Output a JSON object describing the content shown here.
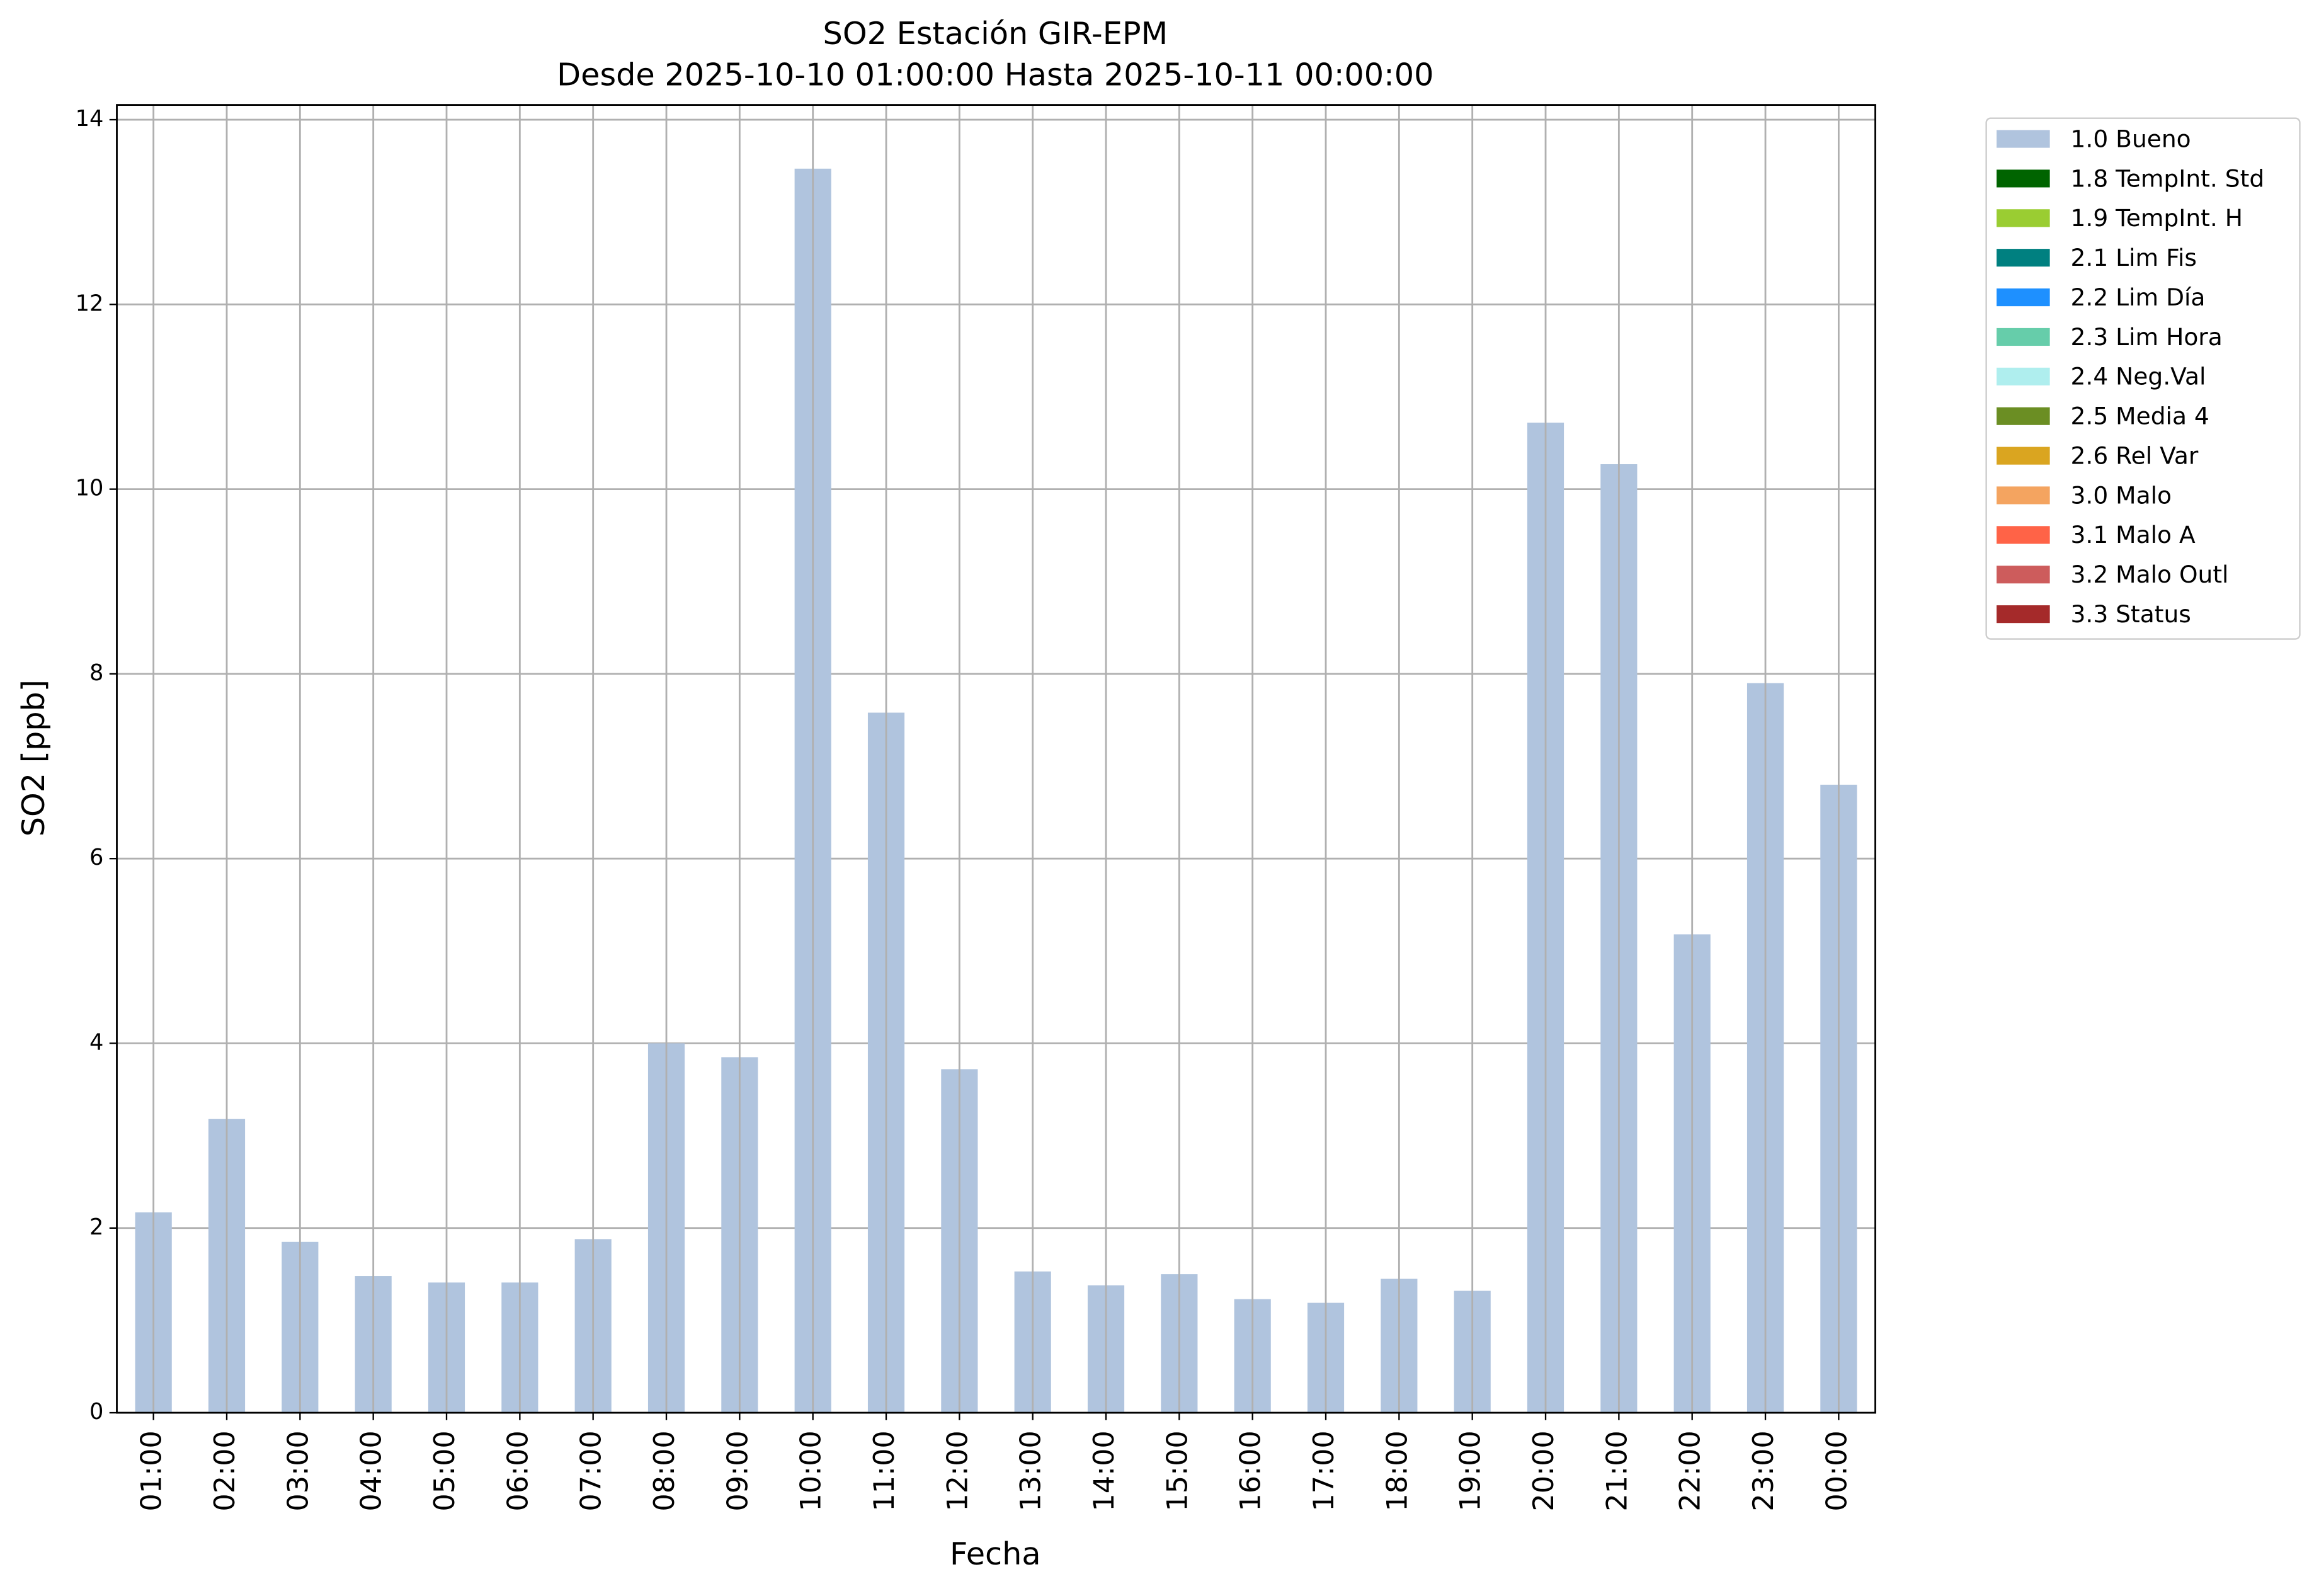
{
  "chart_data": {
    "type": "bar",
    "title": "SO2 Estación GIR-EPM",
    "subtitle": "Desde 2025-10-10 01:00:00 Hasta 2025-10-11 00:00:00",
    "x_label": "Fecha",
    "y_label": "SO2 [ppb]",
    "categories": [
      "01:00",
      "02:00",
      "03:00",
      "04:00",
      "05:00",
      "06:00",
      "07:00",
      "08:00",
      "09:00",
      "10:00",
      "11:00",
      "12:00",
      "13:00",
      "14:00",
      "15:00",
      "16:00",
      "17:00",
      "18:00",
      "19:00",
      "20:00",
      "21:00",
      "22:00",
      "23:00",
      "00:00"
    ],
    "series": [
      {
        "name": "1.0 Bueno",
        "color": "#b0c4de",
        "values": [
          2.17,
          3.18,
          1.85,
          1.48,
          1.41,
          1.41,
          1.88,
          4.0,
          3.85,
          13.47,
          7.58,
          3.72,
          1.53,
          1.38,
          1.5,
          1.23,
          1.19,
          1.45,
          1.32,
          10.72,
          10.27,
          5.18,
          7.9,
          6.8
        ]
      },
      {
        "name": "1.8 TempInt. Std",
        "color": "#006400",
        "values": [
          0,
          0,
          0,
          0,
          0,
          0,
          0,
          0,
          0,
          0,
          0,
          0,
          0,
          0,
          0,
          0,
          0,
          0,
          0,
          0,
          0,
          0,
          0,
          0
        ]
      },
      {
        "name": "1.9 TempInt. H",
        "color": "#9acd32",
        "values": [
          0,
          0,
          0,
          0,
          0,
          0,
          0,
          0,
          0,
          0,
          0,
          0,
          0,
          0,
          0,
          0,
          0,
          0,
          0,
          0,
          0,
          0,
          0,
          0
        ]
      },
      {
        "name": "2.1 Lim Fis",
        "color": "#008080",
        "values": [
          0,
          0,
          0,
          0,
          0,
          0,
          0,
          0,
          0,
          0,
          0,
          0,
          0,
          0,
          0,
          0,
          0,
          0,
          0,
          0,
          0,
          0,
          0,
          0
        ]
      },
      {
        "name": "2.2 Lim Día",
        "color": "#1e90ff",
        "values": [
          0,
          0,
          0,
          0,
          0,
          0,
          0,
          0,
          0,
          0,
          0,
          0,
          0,
          0,
          0,
          0,
          0,
          0,
          0,
          0,
          0,
          0,
          0,
          0
        ]
      },
      {
        "name": "2.3 Lim Hora",
        "color": "#66cdaa",
        "values": [
          0,
          0,
          0,
          0,
          0,
          0,
          0,
          0,
          0,
          0,
          0,
          0,
          0,
          0,
          0,
          0,
          0,
          0,
          0,
          0,
          0,
          0,
          0,
          0
        ]
      },
      {
        "name": "2.4 Neg.Val",
        "color": "#afeeee",
        "values": [
          0,
          0,
          0,
          0,
          0,
          0,
          0,
          0,
          0,
          0,
          0,
          0,
          0,
          0,
          0,
          0,
          0,
          0,
          0,
          0,
          0,
          0,
          0,
          0
        ]
      },
      {
        "name": "2.5 Media 4",
        "color": "#6b8e23",
        "values": [
          0,
          0,
          0,
          0,
          0,
          0,
          0,
          0,
          0,
          0,
          0,
          0,
          0,
          0,
          0,
          0,
          0,
          0,
          0,
          0,
          0,
          0,
          0,
          0
        ]
      },
      {
        "name": "2.6 Rel Var",
        "color": "#daa520",
        "values": [
          0,
          0,
          0,
          0,
          0,
          0,
          0,
          0,
          0,
          0,
          0,
          0,
          0,
          0,
          0,
          0,
          0,
          0,
          0,
          0,
          0,
          0,
          0,
          0
        ]
      },
      {
        "name": "3.0 Malo",
        "color": "#f4a460",
        "values": [
          0,
          0,
          0,
          0,
          0,
          0,
          0,
          0,
          0,
          0,
          0,
          0,
          0,
          0,
          0,
          0,
          0,
          0,
          0,
          0,
          0,
          0,
          0,
          0
        ]
      },
      {
        "name": "3.1 Malo A",
        "color": "#ff6347",
        "values": [
          0,
          0,
          0,
          0,
          0,
          0,
          0,
          0,
          0,
          0,
          0,
          0,
          0,
          0,
          0,
          0,
          0,
          0,
          0,
          0,
          0,
          0,
          0,
          0
        ]
      },
      {
        "name": "3.2 Malo Outl",
        "color": "#cd5c5c",
        "values": [
          0,
          0,
          0,
          0,
          0,
          0,
          0,
          0,
          0,
          0,
          0,
          0,
          0,
          0,
          0,
          0,
          0,
          0,
          0,
          0,
          0,
          0,
          0,
          0
        ]
      },
      {
        "name": "3.3 Status",
        "color": "#a52a2a",
        "values": [
          0,
          0,
          0,
          0,
          0,
          0,
          0,
          0,
          0,
          0,
          0,
          0,
          0,
          0,
          0,
          0,
          0,
          0,
          0,
          0,
          0,
          0,
          0,
          0
        ]
      }
    ],
    "ylim": [
      0,
      14.16
    ],
    "yticks": [
      0,
      2,
      4,
      6,
      8,
      10,
      12,
      14
    ],
    "grid": true,
    "stacked": true,
    "legend": "outside-right"
  }
}
